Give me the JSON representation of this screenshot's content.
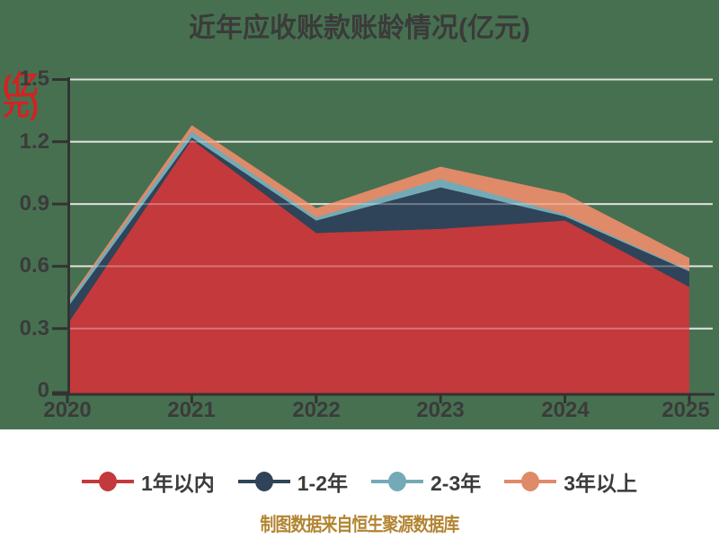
{
  "title": "近年应收账款账龄情况(亿元)",
  "footer": {
    "text": "制图数据来自恒生聚源数据库"
  },
  "colors": {
    "panel_background": "#477050",
    "gridline": "#cfd4cc",
    "gridline_overlay": "rgba(255,255,255,0.3)",
    "axis": "#333333",
    "title_text": "#3b3b3b",
    "tick_text": "#3b3b3b",
    "legend_text": "#3b3b3b",
    "unit_label_text": "#d42222",
    "footer_text": "#b28430"
  },
  "chart_data": {
    "type": "area",
    "stacked": true,
    "title": "近年应收账款账龄情况(亿元)",
    "categories": [
      "2020",
      "2021",
      "2022",
      "2023",
      "2024",
      "2025"
    ],
    "series": [
      {
        "name": "1年以内",
        "color": "#c4393b",
        "values": [
          0.32,
          1.21,
          0.76,
          0.78,
          0.82,
          0.5
        ]
      },
      {
        "name": "1-2年",
        "color": "#2f4458",
        "values": [
          0.08,
          0.01,
          0.06,
          0.2,
          0.02,
          0.075
        ]
      },
      {
        "name": "2-3年",
        "color": "#74aab6",
        "values": [
          0.02,
          0.03,
          0.015,
          0.04,
          0.01,
          0.005
        ]
      },
      {
        "name": "3年以上",
        "color": "#df8a68",
        "values": [
          0.01,
          0.03,
          0.045,
          0.06,
          0.1,
          0.06
        ]
      }
    ],
    "totals": [
      0.43,
      1.28,
      0.88,
      1.08,
      0.95,
      0.64
    ],
    "yaxis": {
      "label": "(亿元)",
      "min": 0,
      "max": 1.5,
      "ticks": [
        "1.5",
        "1.2",
        "0.9",
        "0.6",
        "0.3",
        "0"
      ]
    },
    "xaxis": {
      "ticks": [
        "2020",
        "2021",
        "2022",
        "2023",
        "2024",
        "2025"
      ]
    },
    "grid": true,
    "legend_position": "bottom",
    "legend": [
      "1年以内",
      "1-2年",
      "2-3年",
      "3年以上"
    ]
  }
}
